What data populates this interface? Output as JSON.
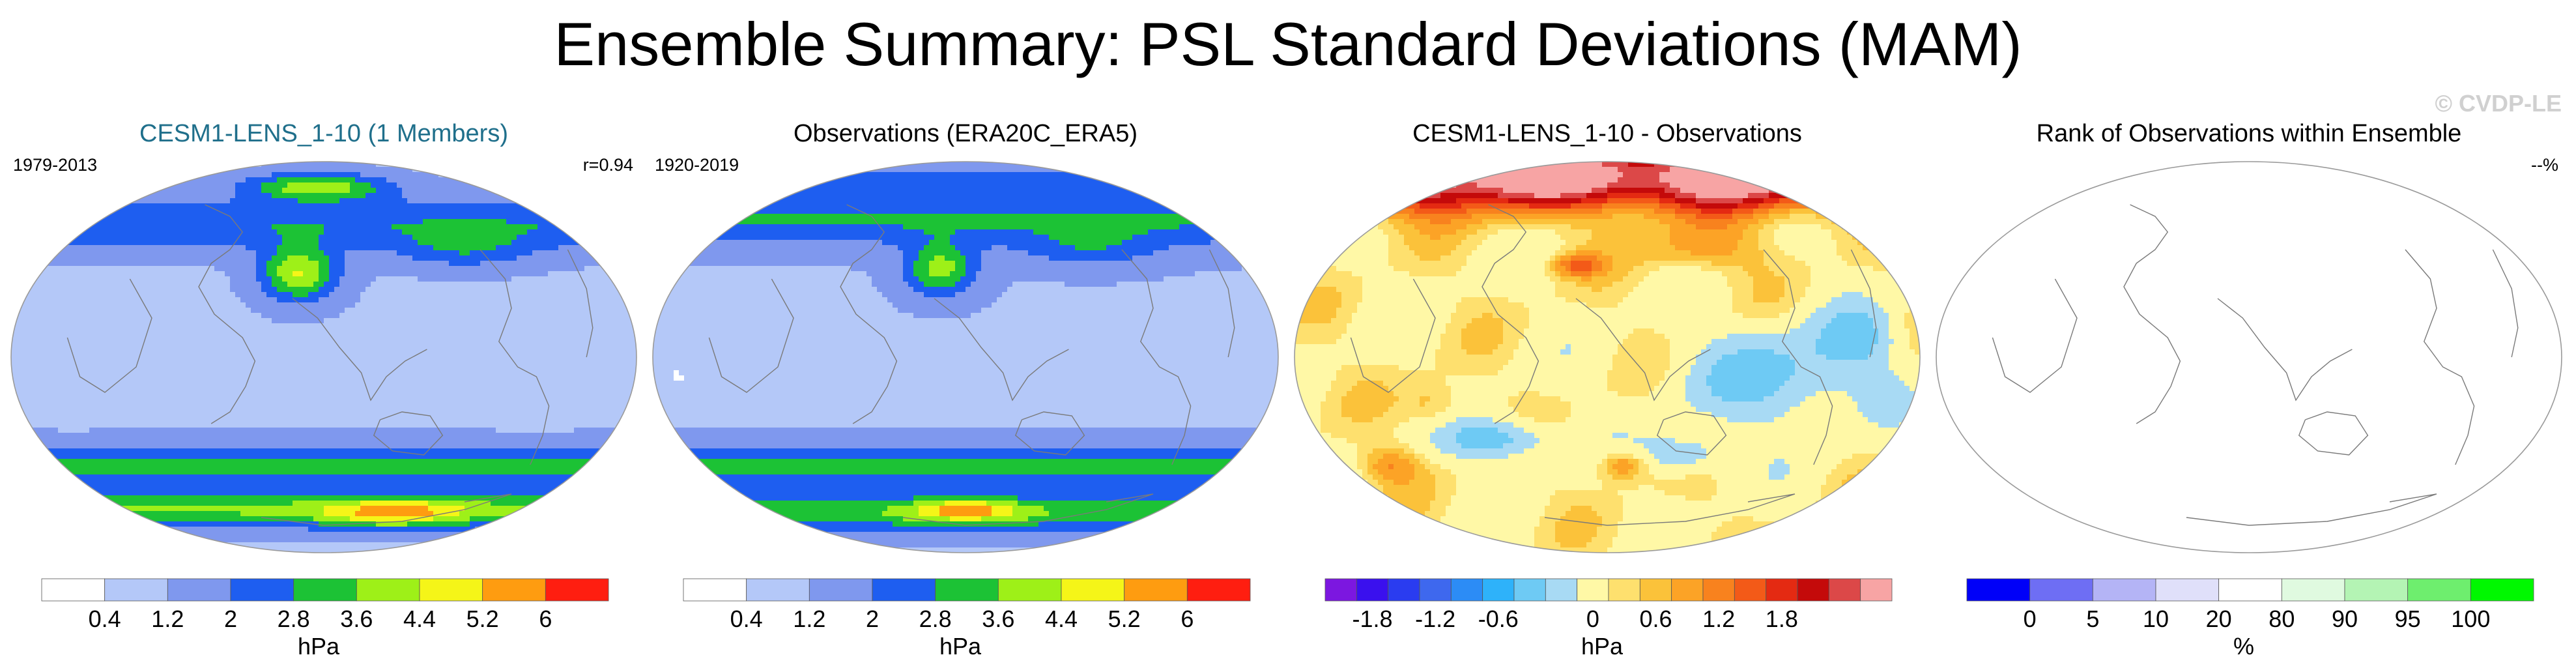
{
  "main_title": "Ensemble Summary: PSL Standard Deviations (MAM)",
  "watermark": "© CVDP-LE",
  "chart_data": [
    {
      "type": "heatmap",
      "title": "CESM1-LENS_1-10 (1 Members)",
      "title_color": "#1f6f8b",
      "period": "1979-2013",
      "stat": "r=0.94",
      "projection": "robinson",
      "field": "std_model",
      "colorbar": {
        "colors": [
          "#ffffff",
          "#b4c8f8",
          "#7f98ee",
          "#1e5ef0",
          "#1cc235",
          "#9ef018",
          "#f5f518",
          "#fe9c10",
          "#ff1e10"
        ],
        "ticks": [
          "0.4",
          "1.2",
          "2",
          "2.8",
          "3.6",
          "4.4",
          "5.2",
          "6"
        ],
        "unit": "hPa"
      }
    },
    {
      "type": "heatmap",
      "title": "Observations (ERA20C_ERA5)",
      "title_color": "#000000",
      "period": "1920-2019",
      "stat": "",
      "projection": "robinson",
      "field": "std_obs",
      "colorbar": {
        "colors": [
          "#ffffff",
          "#b4c8f8",
          "#7f98ee",
          "#1e5ef0",
          "#1cc235",
          "#9ef018",
          "#f5f518",
          "#fe9c10",
          "#ff1e10"
        ],
        "ticks": [
          "0.4",
          "1.2",
          "2",
          "2.8",
          "3.6",
          "4.4",
          "5.2",
          "6"
        ],
        "unit": "hPa"
      }
    },
    {
      "type": "heatmap",
      "title": "CESM1-LENS_1-10 - Observations",
      "title_color": "#000000",
      "period": "",
      "stat": "",
      "projection": "robinson",
      "field": "difference",
      "colorbar": {
        "colors": [
          "#7c17e0",
          "#3a10ee",
          "#2a3cf0",
          "#3e68ee",
          "#2c8cf6",
          "#2eb2fa",
          "#6ecaf4",
          "#a8daf4",
          "#fff8a6",
          "#fee06e",
          "#fbc23a",
          "#fca326",
          "#f8821e",
          "#f35a18",
          "#e42a12",
          "#c40a0a",
          "#dc4848",
          "#f7a4a4"
        ],
        "ticks": [
          "-1.8",
          "-1.2",
          "-0.6",
          "0",
          "0.6",
          "1.2",
          "1.8"
        ],
        "unit": "hPa"
      }
    },
    {
      "type": "heatmap",
      "title": "Rank of Observations within Ensemble",
      "title_color": "#000000",
      "period": "",
      "stat": "--%",
      "projection": "robinson",
      "field": "empty",
      "colorbar": {
        "colors": [
          "#0000f8",
          "#6e6ef4",
          "#b4b4f6",
          "#e0e0fa",
          "#ffffff",
          "#e0fae0",
          "#b4f4b4",
          "#6eee6e",
          "#00f800"
        ],
        "ticks": [
          "0",
          "5",
          "10",
          "20",
          "80",
          "90",
          "95",
          "100"
        ],
        "unit": "%"
      }
    }
  ]
}
